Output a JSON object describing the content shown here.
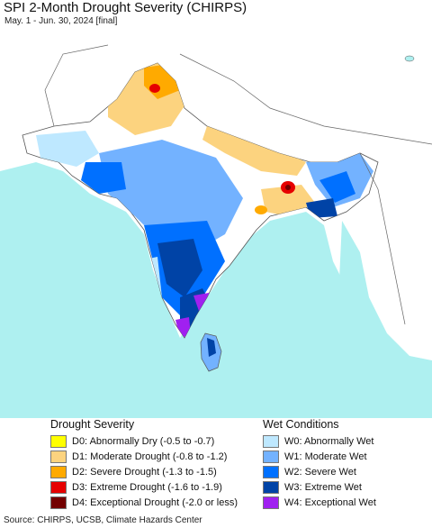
{
  "header": {
    "title": "SPI 2-Month Drought Severity (CHIRPS)",
    "subtitle": "May. 1 - Jun. 30, 2024 [final]"
  },
  "colors": {
    "ocean": "#aef0f0",
    "land_outside": "#ffffff",
    "D0": "#ffff00",
    "D1": "#fcd37f",
    "D2": "#ffaa00",
    "D3": "#e60000",
    "D4": "#730000",
    "W0": "#bee8ff",
    "W1": "#73b2ff",
    "W2": "#0070ff",
    "W3": "#0043a6",
    "W4": "#a020f0"
  },
  "legend": {
    "drought": {
      "heading": "Drought Severity",
      "items": [
        {
          "code": "D0",
          "label": "D0: Abnormally Dry (-0.5 to -0.7)",
          "color": "#ffff00"
        },
        {
          "code": "D1",
          "label": "D1: Moderate Drought (-0.8 to -1.2)",
          "color": "#fcd37f"
        },
        {
          "code": "D2",
          "label": "D2: Severe Drought (-1.3 to -1.5)",
          "color": "#ffaa00"
        },
        {
          "code": "D3",
          "label": "D3: Extreme Drought (-1.6 to -1.9)",
          "color": "#e60000"
        },
        {
          "code": "D4",
          "label": "D4: Exceptional Drought (-2.0 or less)",
          "color": "#730000"
        }
      ]
    },
    "wet": {
      "heading": "Wet Conditions",
      "items": [
        {
          "code": "W0",
          "label": "W0: Abnormally Wet",
          "color": "#bee8ff"
        },
        {
          "code": "W1",
          "label": "W1: Moderate Wet",
          "color": "#73b2ff"
        },
        {
          "code": "W2",
          "label": "W2: Severe Wet",
          "color": "#0070ff"
        },
        {
          "code": "W3",
          "label": "W3: Extreme Wet",
          "color": "#0043a6"
        },
        {
          "code": "W4",
          "label": "W4: Exceptional Wet",
          "color": "#a020f0"
        }
      ]
    }
  },
  "footer": {
    "source": "Source: CHIRPS, UCSB, Climate Hazards Center"
  }
}
